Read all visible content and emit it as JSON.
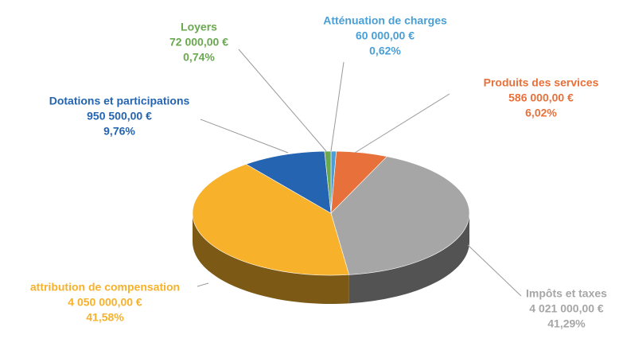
{
  "chart_data": {
    "type": "pie",
    "categories": [
      "Atténuation de charges",
      "Produits des services",
      "Impôts et taxes",
      "attribution de compensation",
      "Dotations et participations",
      "Loyers"
    ],
    "values": [
      60000,
      586000,
      4021000,
      4050000,
      950500,
      72000
    ],
    "value_labels": [
      "60 000,00 €",
      "586 000,00 €",
      "4 021 000,00 €",
      "4 050 000,00 €",
      "950 500,00 €",
      "72 000,00 €"
    ],
    "percent_labels": [
      "0,62%",
      "6,02%",
      "41,29%",
      "41,58%",
      "9,76%",
      "0,74%"
    ],
    "colors": [
      "#4a9fd6",
      "#e8703a",
      "#a6a6a6",
      "#f7b12a",
      "#2464b0",
      "#6aa84f"
    ]
  }
}
